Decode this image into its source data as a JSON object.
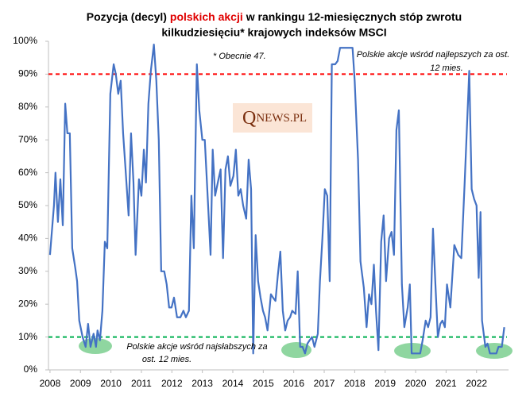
{
  "chart_data": {
    "type": "line",
    "title": [
      "Pozycja (decyl)",
      "polskich akcji",
      "w rankingu 12-miesięcznych stóp zwrotu"
    ],
    "title_line2": "kilkudziesięciu*  krajowych indeksów MSCI",
    "title_highlight_color": "#e00000",
    "annotations": {
      "current": "* Obecnie 47.",
      "top": [
        "Polskie akcje  wśród najlepszych za ost.",
        "12 mies."
      ],
      "bottom": [
        "Polskie akcje  wśród najsłabszych za",
        "ost. 12 mies."
      ]
    },
    "logo": {
      "initial": "Q",
      "rest": "NEWS.PL"
    },
    "reference_lines": [
      {
        "value": 90,
        "color": "#ff0000"
      },
      {
        "value": 10,
        "color": "#00b050"
      }
    ],
    "xlim": [
      2007.95,
      2023.05
    ],
    "xticks": [
      2008,
      2009,
      2010,
      2011,
      2012,
      2013,
      2014,
      2015,
      2016,
      2017,
      2018,
      2019,
      2020,
      2021,
      2022
    ],
    "ylim": [
      0,
      100
    ],
    "yticks": [
      {
        "value": 0,
        "label": "0%"
      },
      {
        "value": 10,
        "label": "10%"
      },
      {
        "value": 20,
        "label": "20%"
      },
      {
        "value": 30,
        "label": "30%"
      },
      {
        "value": 40,
        "label": "40%"
      },
      {
        "value": 50,
        "label": "50%"
      },
      {
        "value": 60,
        "label": "60%"
      },
      {
        "value": 70,
        "label": "70%"
      },
      {
        "value": 80,
        "label": "80%"
      },
      {
        "value": 90,
        "label": "90%"
      },
      {
        "value": 100,
        "label": "100%"
      }
    ],
    "x": [
      2008.0,
      2008.13,
      2008.18,
      2008.26,
      2008.34,
      2008.42,
      2008.5,
      2008.57,
      2008.65,
      2008.73,
      2008.83,
      2008.89,
      2008.96,
      2009.07,
      2009.17,
      2009.25,
      2009.33,
      2009.43,
      2009.51,
      2009.56,
      2009.64,
      2009.72,
      2009.8,
      2009.88,
      2009.98,
      2010.09,
      2010.16,
      2010.24,
      2010.32,
      2010.4,
      2010.48,
      2010.58,
      2010.66,
      2010.74,
      2010.81,
      2010.92,
      2011.0,
      2011.08,
      2011.15,
      2011.23,
      2011.31,
      2011.41,
      2011.49,
      2011.57,
      2011.65,
      2011.75,
      2011.83,
      2011.91,
      2011.99,
      2012.07,
      2012.17,
      2012.28,
      2012.38,
      2012.46,
      2012.56,
      2012.64,
      2012.72,
      2012.82,
      2012.9,
      2013.0,
      2013.08,
      2013.19,
      2013.27,
      2013.34,
      2013.42,
      2013.53,
      2013.6,
      2013.68,
      2013.76,
      2013.84,
      2013.92,
      2014.02,
      2014.1,
      2014.18,
      2014.26,
      2014.34,
      2014.44,
      2014.52,
      2014.6,
      2014.67,
      2014.75,
      2014.83,
      2014.91,
      2014.99,
      2015.06,
      2015.14,
      2015.25,
      2015.32,
      2015.4,
      2015.48,
      2015.56,
      2015.64,
      2015.72,
      2015.8,
      2015.88,
      2015.95,
      2016.06,
      2016.13,
      2016.21,
      2016.29,
      2016.37,
      2016.45,
      2016.52,
      2016.6,
      2016.68,
      2016.79,
      2016.86,
      2016.94,
      2017.02,
      2017.1,
      2017.18,
      2017.25,
      2017.36,
      2017.44,
      2017.52,
      2017.62,
      2017.72,
      2017.85,
      2017.93,
      2018.0,
      2018.11,
      2018.19,
      2018.3,
      2018.39,
      2018.47,
      2018.55,
      2018.63,
      2018.7,
      2018.78,
      2018.87,
      2018.95,
      2019.03,
      2019.13,
      2019.21,
      2019.29,
      2019.37,
      2019.45,
      2019.55,
      2019.63,
      2019.74,
      2019.81,
      2019.87,
      2020.02,
      2020.15,
      2020.23,
      2020.33,
      2020.41,
      2020.49,
      2020.57,
      2020.65,
      2020.73,
      2020.81,
      2020.88,
      2020.96,
      2021.03,
      2021.14,
      2021.27,
      2021.4,
      2021.5,
      2021.61,
      2021.76,
      2021.84,
      2021.92,
      2022.0,
      2022.07,
      2022.13,
      2022.18,
      2022.29,
      2022.36,
      2022.44,
      2022.54,
      2022.65,
      2022.72,
      2022.83,
      2022.91
    ],
    "series": [
      {
        "name": "Pozycja (decyl) polskich akcji",
        "color": "#4472c4",
        "values": [
          35,
          50,
          60,
          45,
          58,
          44,
          81,
          72,
          72,
          37,
          31,
          27,
          15,
          10,
          7,
          14,
          7,
          11,
          7,
          12,
          9,
          18,
          39,
          37,
          84,
          93,
          90,
          84,
          88,
          72,
          61,
          47,
          72,
          57,
          35,
          58,
          53,
          67,
          57,
          81,
          91,
          99,
          88,
          70,
          30,
          30,
          26,
          19,
          19,
          22,
          16,
          16,
          18,
          16,
          18,
          53,
          37,
          93,
          79,
          70,
          70,
          50,
          35,
          67,
          53,
          58,
          61,
          34,
          61,
          65,
          56,
          59,
          67,
          53,
          55,
          50,
          46,
          64,
          55,
          5,
          41,
          27,
          22,
          18,
          16,
          12,
          23,
          22,
          21,
          29,
          36,
          18,
          12,
          15,
          16,
          18,
          17,
          30,
          7,
          7,
          5,
          8,
          9,
          10,
          7,
          11,
          27,
          40,
          55,
          53,
          27,
          93,
          93,
          94,
          98,
          98,
          98,
          98,
          98,
          88,
          64,
          33,
          25,
          13,
          23,
          20,
          32,
          18,
          6,
          39,
          47,
          27,
          40,
          42,
          35,
          73,
          79,
          26,
          13,
          19,
          26,
          5,
          5,
          5,
          9,
          15,
          13,
          16,
          43,
          26,
          10,
          14,
          15,
          13,
          26,
          19,
          38,
          35,
          34,
          57,
          91,
          55,
          52,
          50,
          28,
          48,
          15,
          7,
          8,
          5,
          5,
          5,
          7,
          7,
          13
        ]
      }
    ]
  }
}
